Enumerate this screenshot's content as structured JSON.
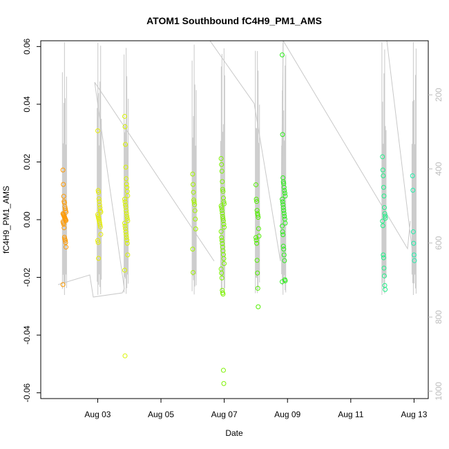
{
  "chart_data": {
    "type": "scatter",
    "title": "ATOM1 Southbound fC4H9_PM1_AMS",
    "xlabel": "Date",
    "ylabel": "fC4H9_PM1_AMS",
    "xlim": [
      1.2,
      13.45
    ],
    "ylim": [
      -0.062,
      0.062
    ],
    "x_ticks": [
      {
        "value": 3,
        "label": "Aug 03"
      },
      {
        "value": 5,
        "label": "Aug 05"
      },
      {
        "value": 7,
        "label": "Aug 07"
      },
      {
        "value": 9,
        "label": "Aug 09"
      },
      {
        "value": 11,
        "label": "Aug 11"
      },
      {
        "value": 13,
        "label": "Aug 13"
      }
    ],
    "y_ticks": [
      -0.06,
      -0.04,
      -0.02,
      0.0,
      0.02,
      0.04,
      0.06
    ],
    "y_tick_labels": [
      "-0.06",
      "-0.04",
      "-0.02",
      "0.00",
      "0.02",
      "0.04",
      "0.06"
    ],
    "right_axis": {
      "range": [
        54,
        1020
      ],
      "ticks": [
        200,
        400,
        600,
        800,
        1000
      ],
      "color": "#bdbdbd"
    },
    "line_color": "#c8c8c8",
    "point_groups": [
      {
        "color": "#ff9a00",
        "x": 1.95,
        "values": [
          0.0172,
          0.0122,
          0.0081,
          0.0063,
          0.0058,
          0.0045,
          0.0038,
          0.0031,
          0.0026,
          0.0021,
          0.0018,
          0.0015,
          0.0012,
          0.0009,
          0.0006,
          0.0003,
          0.0,
          -0.0003,
          -0.0007,
          -0.0011,
          -0.0016,
          -0.0028,
          -0.0061,
          -0.0067,
          -0.0072,
          -0.0079,
          -0.0095,
          -0.0225
        ]
      },
      {
        "color": "#e6ee00",
        "x": 3.05,
        "values": [
          0.0308,
          0.0101,
          0.0095,
          0.0072,
          0.0063,
          0.0051,
          0.0042,
          0.0031,
          0.0026,
          0.0018,
          0.0012,
          0.0006,
          0.0001,
          -0.0005,
          -0.0011,
          -0.0018,
          -0.0025,
          -0.0051,
          -0.0072,
          -0.0079,
          -0.0134
        ]
      },
      {
        "color": "#d8f400",
        "x": 3.9,
        "values": [
          0.0358,
          0.0322,
          0.0261,
          0.0182,
          0.0142,
          0.0123,
          0.0112,
          0.0098,
          0.0083,
          0.0071,
          0.0062,
          0.0051,
          0.0043,
          0.0031,
          0.0022,
          0.0012,
          0.0004,
          -0.0004,
          -0.0012,
          -0.0022,
          -0.0031,
          -0.0042,
          -0.0052,
          -0.0061,
          -0.0071,
          -0.0082,
          -0.0122,
          -0.0175,
          -0.0472
        ]
      },
      {
        "color": "#a3f400",
        "x": 6.05,
        "values": [
          0.0158,
          0.0122,
          0.0095,
          0.0068,
          0.0061,
          0.0052,
          0.0031,
          0.0002,
          -0.0032,
          -0.0102,
          -0.0183
        ]
      },
      {
        "color": "#7cf200",
        "x": 6.95,
        "values": [
          0.0212,
          0.0191,
          0.0168,
          0.0132,
          0.0105,
          0.0098,
          0.0075,
          0.0062,
          0.0055,
          0.0048,
          0.0041,
          0.0032,
          0.0022,
          0.0011,
          0.0004,
          -0.0004,
          -0.0016,
          -0.0026,
          -0.0041,
          -0.0062,
          -0.0072,
          -0.0083,
          -0.0095,
          -0.0108,
          -0.0121,
          -0.0135,
          -0.0152,
          -0.0171,
          -0.0185,
          -0.0202,
          -0.0245,
          -0.0253,
          -0.0258,
          -0.0522,
          -0.0568
        ]
      },
      {
        "color": "#52ee00",
        "x": 8.05,
        "values": [
          0.0121,
          0.0071,
          0.0063,
          0.0032,
          0.0022,
          0.0016,
          0.0008,
          -0.0031,
          -0.0057,
          -0.0062,
          -0.0071,
          -0.0082,
          -0.0141,
          -0.0185,
          -0.0238,
          -0.0302
        ]
      },
      {
        "color": "#2cee1a",
        "x": 8.88,
        "values": [
          0.0571,
          0.0295,
          0.0145,
          0.0131,
          0.0125,
          0.0112,
          0.0101,
          0.0092,
          0.0082,
          0.0071,
          0.0062,
          0.0052,
          0.0042,
          0.0032,
          0.0022,
          0.0012,
          0.0002,
          -0.0012,
          -0.0022,
          -0.0042,
          -0.0052,
          -0.0092,
          -0.0102,
          -0.0122,
          -0.0142,
          -0.0208,
          -0.0212,
          -0.0215
        ]
      },
      {
        "color": "#22ee88",
        "x": 12.05,
        "values": [
          0.0218,
          0.0172,
          0.0152,
          0.0112,
          0.0082,
          0.0042,
          0.0021,
          0.0012,
          0.0005,
          -0.0005,
          -0.0021,
          -0.0122,
          -0.0132,
          -0.0168,
          -0.0195,
          -0.0228,
          -0.0242
        ]
      },
      {
        "color": "#22eeaa",
        "x": 13.0,
        "values": [
          0.0152,
          0.0102,
          -0.0042,
          -0.0082,
          -0.0122,
          -0.0142
        ]
      }
    ]
  }
}
